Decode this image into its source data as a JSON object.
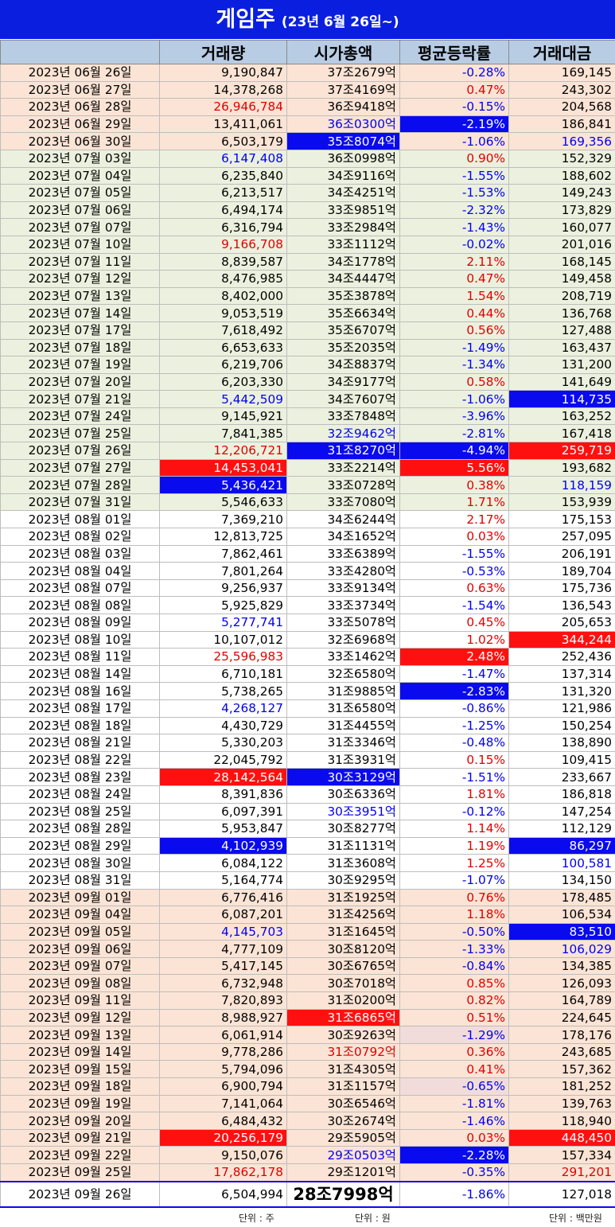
{
  "title": "게임주",
  "subtitle": "(23년 6월 26일~)",
  "headers": [
    "",
    "거래량",
    "시가총액",
    "평균등락률",
    "거래대금"
  ],
  "units": {
    "volume": "단위 : 주",
    "cap": "단위 : 원",
    "amount": "단위 : 백만원"
  },
  "colors": {
    "header_bg": "#b8cce4",
    "title_bg": "#0a1ee0",
    "highlight_red": "#ff1010",
    "highlight_blue": "#0a0aee",
    "row_peach": "#fbe4d5",
    "row_green": "#ebf1de"
  },
  "rows": [
    {
      "date": "2023년 06월 26일",
      "band": "peach",
      "volume": "9,190,847",
      "cap": "37조2679억",
      "change": "-0.28%",
      "amount": "169,145",
      "vs": "black",
      "cs": "black",
      "chs": "blue",
      "as": "black"
    },
    {
      "date": "2023년 06월 27일",
      "band": "peach",
      "volume": "14,378,268",
      "cap": "37조4169억",
      "change": "0.47%",
      "amount": "243,302",
      "vs": "black",
      "cs": "black",
      "chs": "red",
      "as": "black"
    },
    {
      "date": "2023년 06월 28일",
      "band": "peach",
      "volume": "26,946,784",
      "cap": "36조9418억",
      "change": "-0.15%",
      "amount": "204,568",
      "vs": "red",
      "cs": "black",
      "chs": "blue",
      "as": "black"
    },
    {
      "date": "2023년 06월 29일",
      "band": "peach",
      "volume": "13,411,061",
      "cap": "36조0300억",
      "change": "-2.19%",
      "amount": "186,841",
      "vs": "black",
      "cs": "blue",
      "chs": "bg-blue",
      "as": "black"
    },
    {
      "date": "2023년 06월 30일",
      "band": "peach",
      "volume": "6,503,179",
      "cap": "35조8074억",
      "change": "-1.06%",
      "amount": "169,356",
      "vs": "black",
      "cs": "bg-blue",
      "chs": "blue",
      "as": "blue"
    },
    {
      "date": "2023년 07월 03일",
      "band": "green",
      "volume": "6,147,408",
      "cap": "36조0998억",
      "change": "0.90%",
      "amount": "152,329",
      "vs": "blue",
      "cs": "black",
      "chs": "red",
      "as": "black"
    },
    {
      "date": "2023년 07월 04일",
      "band": "green",
      "volume": "6,235,840",
      "cap": "34조9116억",
      "change": "-1.55%",
      "amount": "188,602",
      "vs": "black",
      "cs": "black",
      "chs": "blue",
      "as": "black"
    },
    {
      "date": "2023년 07월 05일",
      "band": "green",
      "volume": "6,213,517",
      "cap": "34조4251억",
      "change": "-1.53%",
      "amount": "149,243",
      "vs": "black",
      "cs": "black",
      "chs": "blue",
      "as": "black"
    },
    {
      "date": "2023년 07월 06일",
      "band": "green",
      "volume": "6,494,174",
      "cap": "33조9851억",
      "change": "-2.32%",
      "amount": "173,829",
      "vs": "black",
      "cs": "black",
      "chs": "blue",
      "as": "black"
    },
    {
      "date": "2023년 07월 07일",
      "band": "green",
      "volume": "6,316,794",
      "cap": "33조2984억",
      "change": "-1.43%",
      "amount": "160,077",
      "vs": "black",
      "cs": "black",
      "chs": "blue",
      "as": "black"
    },
    {
      "date": "2023년 07월 10일",
      "band": "green",
      "volume": "9,166,708",
      "cap": "33조1112억",
      "change": "-0.02%",
      "amount": "201,016",
      "vs": "red",
      "cs": "black",
      "chs": "blue",
      "as": "black"
    },
    {
      "date": "2023년 07월 11일",
      "band": "green",
      "volume": "8,839,587",
      "cap": "34조1778억",
      "change": "2.11%",
      "amount": "168,145",
      "vs": "black",
      "cs": "black",
      "chs": "red",
      "as": "black"
    },
    {
      "date": "2023년 07월 12일",
      "band": "green",
      "volume": "8,476,985",
      "cap": "34조4447억",
      "change": "0.47%",
      "amount": "149,458",
      "vs": "black",
      "cs": "black",
      "chs": "red",
      "as": "black"
    },
    {
      "date": "2023년 07월 13일",
      "band": "green",
      "volume": "8,402,000",
      "cap": "35조3878억",
      "change": "1.54%",
      "amount": "208,719",
      "vs": "black",
      "cs": "black",
      "chs": "red",
      "as": "black"
    },
    {
      "date": "2023년 07월 14일",
      "band": "green",
      "volume": "9,053,519",
      "cap": "35조6634억",
      "change": "0.44%",
      "amount": "136,768",
      "vs": "black",
      "cs": "black",
      "chs": "red",
      "as": "black"
    },
    {
      "date": "2023년 07월 17일",
      "band": "green",
      "volume": "7,618,492",
      "cap": "35조6707억",
      "change": "0.56%",
      "amount": "127,488",
      "vs": "black",
      "cs": "black",
      "chs": "red",
      "as": "black"
    },
    {
      "date": "2023년 07월 18일",
      "band": "green",
      "volume": "6,653,633",
      "cap": "35조2035억",
      "change": "-1.49%",
      "amount": "163,437",
      "vs": "black",
      "cs": "black",
      "chs": "blue",
      "as": "black"
    },
    {
      "date": "2023년 07월 19일",
      "band": "green",
      "volume": "6,219,706",
      "cap": "34조8837억",
      "change": "-1.34%",
      "amount": "131,200",
      "vs": "black",
      "cs": "black",
      "chs": "blue",
      "as": "black"
    },
    {
      "date": "2023년 07월 20일",
      "band": "green",
      "volume": "6,203,330",
      "cap": "34조9177억",
      "change": "0.58%",
      "amount": "141,649",
      "vs": "black",
      "cs": "black",
      "chs": "red",
      "as": "black"
    },
    {
      "date": "2023년 07월 21일",
      "band": "green",
      "volume": "5,442,509",
      "cap": "34조7607억",
      "change": "-1.06%",
      "amount": "114,735",
      "vs": "blue",
      "cs": "black",
      "chs": "blue",
      "as": "bg-blue"
    },
    {
      "date": "2023년 07월 24일",
      "band": "green",
      "volume": "9,145,921",
      "cap": "33조7848억",
      "change": "-3.96%",
      "amount": "163,252",
      "vs": "black",
      "cs": "black",
      "chs": "blue",
      "as": "black"
    },
    {
      "date": "2023년 07월 25일",
      "band": "green",
      "volume": "7,841,385",
      "cap": "32조9462억",
      "change": "-2.81%",
      "amount": "167,418",
      "vs": "black",
      "cs": "blue",
      "chs": "blue",
      "as": "black"
    },
    {
      "date": "2023년 07월 26일",
      "band": "green",
      "volume": "12,206,721",
      "cap": "31조8270억",
      "change": "-4.94%",
      "amount": "259,719",
      "vs": "red",
      "cs": "bg-blue",
      "chs": "bg-blue",
      "as": "bg-red"
    },
    {
      "date": "2023년 07월 27일",
      "band": "green",
      "volume": "14,453,041",
      "cap": "33조2214억",
      "change": "5.56%",
      "amount": "193,682",
      "vs": "bg-red",
      "cs": "black",
      "chs": "bg-red",
      "as": "black"
    },
    {
      "date": "2023년 07월 28일",
      "band": "green",
      "volume": "5,436,421",
      "cap": "33조0728억",
      "change": "0.38%",
      "amount": "118,159",
      "vs": "bg-blue",
      "cs": "black",
      "chs": "red",
      "as": "blue"
    },
    {
      "date": "2023년 07월 31일",
      "band": "green",
      "volume": "5,546,633",
      "cap": "33조7080억",
      "change": "1.71%",
      "amount": "153,939",
      "vs": "black",
      "cs": "black",
      "chs": "red",
      "as": "black"
    },
    {
      "date": "2023년 08월 01일",
      "band": "white",
      "volume": "7,369,210",
      "cap": "34조6244억",
      "change": "2.17%",
      "amount": "175,153",
      "vs": "black",
      "cs": "black",
      "chs": "red",
      "as": "black"
    },
    {
      "date": "2023년 08월 02일",
      "band": "white",
      "volume": "12,813,725",
      "cap": "34조1652억",
      "change": "0.03%",
      "amount": "257,095",
      "vs": "black",
      "cs": "black",
      "chs": "red",
      "as": "black"
    },
    {
      "date": "2023년 08월 03일",
      "band": "white",
      "volume": "7,862,461",
      "cap": "33조6389억",
      "change": "-1.55%",
      "amount": "206,191",
      "vs": "black",
      "cs": "black",
      "chs": "blue",
      "as": "black"
    },
    {
      "date": "2023년 08월 04일",
      "band": "white",
      "volume": "7,801,264",
      "cap": "33조4280억",
      "change": "-0.53%",
      "amount": "189,704",
      "vs": "black",
      "cs": "black",
      "chs": "blue",
      "as": "black"
    },
    {
      "date": "2023년 08월 07일",
      "band": "white",
      "volume": "9,256,937",
      "cap": "33조9134억",
      "change": "0.63%",
      "amount": "175,736",
      "vs": "black",
      "cs": "black",
      "chs": "red",
      "as": "black"
    },
    {
      "date": "2023년 08월 08일",
      "band": "white",
      "volume": "5,925,829",
      "cap": "33조3734억",
      "change": "-1.54%",
      "amount": "136,543",
      "vs": "black",
      "cs": "black",
      "chs": "blue",
      "as": "black"
    },
    {
      "date": "2023년 08월 09일",
      "band": "white",
      "volume": "5,277,741",
      "cap": "33조5078억",
      "change": "0.45%",
      "amount": "205,653",
      "vs": "blue",
      "cs": "black",
      "chs": "red",
      "as": "black"
    },
    {
      "date": "2023년 08월 10일",
      "band": "white",
      "volume": "10,107,012",
      "cap": "32조6968억",
      "change": "1.02%",
      "amount": "344,244",
      "vs": "black",
      "cs": "black",
      "chs": "red",
      "as": "bg-red"
    },
    {
      "date": "2023년 08월 11일",
      "band": "white",
      "volume": "25,596,983",
      "cap": "33조1462억",
      "change": "2.48%",
      "amount": "252,436",
      "vs": "red",
      "cs": "black",
      "chs": "bg-red",
      "as": "black"
    },
    {
      "date": "2023년 08월 14일",
      "band": "white",
      "volume": "6,710,181",
      "cap": "32조6580억",
      "change": "-1.47%",
      "amount": "137,314",
      "vs": "black",
      "cs": "black",
      "chs": "blue",
      "as": "black"
    },
    {
      "date": "2023년 08월 16일",
      "band": "white",
      "volume": "5,738,265",
      "cap": "31조9885억",
      "change": "-2.83%",
      "amount": "131,320",
      "vs": "black",
      "cs": "black",
      "chs": "bg-blue",
      "as": "black"
    },
    {
      "date": "2023년 08월 17일",
      "band": "white",
      "volume": "4,268,127",
      "cap": "31조6580억",
      "change": "-0.86%",
      "amount": "121,986",
      "vs": "blue",
      "cs": "black",
      "chs": "blue",
      "as": "black"
    },
    {
      "date": "2023년 08월 18일",
      "band": "white",
      "volume": "4,430,729",
      "cap": "31조4455억",
      "change": "-1.25%",
      "amount": "150,254",
      "vs": "black",
      "cs": "black",
      "chs": "blue",
      "as": "black"
    },
    {
      "date": "2023년 08월 21일",
      "band": "white",
      "volume": "5,330,203",
      "cap": "31조3346억",
      "change": "-0.48%",
      "amount": "138,890",
      "vs": "black",
      "cs": "black",
      "chs": "blue",
      "as": "black"
    },
    {
      "date": "2023년 08월 22일",
      "band": "white",
      "volume": "22,045,792",
      "cap": "31조3931억",
      "change": "0.15%",
      "amount": "109,415",
      "vs": "black",
      "cs": "black",
      "chs": "red",
      "as": "black"
    },
    {
      "date": "2023년 08월 23일",
      "band": "white",
      "volume": "28,142,564",
      "cap": "30조3129억",
      "change": "-1.51%",
      "amount": "233,667",
      "vs": "bg-red",
      "cs": "bg-blue",
      "chs": "blue",
      "as": "black"
    },
    {
      "date": "2023년 08월 24일",
      "band": "white",
      "volume": "8,391,836",
      "cap": "30조6336억",
      "change": "1.81%",
      "amount": "186,818",
      "vs": "black",
      "cs": "black",
      "chs": "red",
      "as": "black"
    },
    {
      "date": "2023년 08월 25일",
      "band": "white",
      "volume": "6,097,391",
      "cap": "30조3951억",
      "change": "-0.12%",
      "amount": "147,254",
      "vs": "black",
      "cs": "blue",
      "chs": "blue",
      "as": "black"
    },
    {
      "date": "2023년 08월 28일",
      "band": "white",
      "volume": "5,953,847",
      "cap": "30조8277억",
      "change": "1.14%",
      "amount": "112,129",
      "vs": "black",
      "cs": "black",
      "chs": "red",
      "as": "black"
    },
    {
      "date": "2023년 08월 29일",
      "band": "white",
      "volume": "4,102,939",
      "cap": "31조1131억",
      "change": "1.19%",
      "amount": "86,297",
      "vs": "bg-blue",
      "cs": "black",
      "chs": "red",
      "as": "bg-blue"
    },
    {
      "date": "2023년 08월 30일",
      "band": "white",
      "volume": "6,084,122",
      "cap": "31조3608억",
      "change": "1.25%",
      "amount": "100,581",
      "vs": "black",
      "cs": "black",
      "chs": "red",
      "as": "blue"
    },
    {
      "date": "2023년 08월 31일",
      "band": "white",
      "volume": "5,164,774",
      "cap": "30조9295억",
      "change": "-1.07%",
      "amount": "134,150",
      "vs": "black",
      "cs": "black",
      "chs": "blue",
      "as": "black"
    },
    {
      "date": "2023년 09월 01일",
      "band": "peach",
      "volume": "6,776,416",
      "cap": "31조1925억",
      "change": "0.76%",
      "amount": "178,485",
      "vs": "black",
      "cs": "black",
      "chs": "red",
      "as": "black"
    },
    {
      "date": "2023년 09월 04일",
      "band": "peach",
      "volume": "6,087,201",
      "cap": "31조4256억",
      "change": "1.18%",
      "amount": "106,534",
      "vs": "black",
      "cs": "black",
      "chs": "red",
      "as": "black"
    },
    {
      "date": "2023년 09월 05일",
      "band": "peach",
      "volume": "4,145,703",
      "cap": "31조1645억",
      "change": "-0.50%",
      "amount": "83,510",
      "vs": "blue",
      "cs": "black",
      "chs": "blue",
      "as": "bg-blue"
    },
    {
      "date": "2023년 09월 06일",
      "band": "peach",
      "volume": "4,777,109",
      "cap": "30조8120억",
      "change": "-1.33%",
      "amount": "106,029",
      "vs": "black",
      "cs": "black",
      "chs": "blue",
      "as": "blue"
    },
    {
      "date": "2023년 09월 07일",
      "band": "peach",
      "volume": "5,417,145",
      "cap": "30조6765억",
      "change": "-0.84%",
      "amount": "134,385",
      "vs": "black",
      "cs": "black",
      "chs": "blue",
      "as": "black"
    },
    {
      "date": "2023년 09월 08일",
      "band": "peach",
      "volume": "6,732,948",
      "cap": "30조7018억",
      "change": "0.85%",
      "amount": "126,093",
      "vs": "black",
      "cs": "black",
      "chs": "red",
      "as": "black"
    },
    {
      "date": "2023년 09월 11일",
      "band": "peach",
      "volume": "7,820,893",
      "cap": "31조0200억",
      "change": "0.82%",
      "amount": "164,789",
      "vs": "black",
      "cs": "black",
      "chs": "red",
      "as": "black"
    },
    {
      "date": "2023년 09월 12일",
      "band": "peach",
      "volume": "8,988,927",
      "cap": "31조6865억",
      "change": "0.51%",
      "amount": "224,645",
      "vs": "black",
      "cs": "bg-red",
      "chs": "red",
      "as": "black"
    },
    {
      "date": "2023년 09월 13일",
      "band": "peach",
      "volume": "6,061,914",
      "cap": "30조9263억",
      "change": "-1.29%",
      "amount": "178,176",
      "vs": "black",
      "cs": "black",
      "chs": "bg-pink-blue",
      "as": "black"
    },
    {
      "date": "2023년 09월 14일",
      "band": "peach",
      "volume": "9,778,286",
      "cap": "31조0792억",
      "change": "0.36%",
      "amount": "243,685",
      "vs": "black",
      "cs": "red",
      "chs": "red",
      "as": "black"
    },
    {
      "date": "2023년 09월 15일",
      "band": "peach",
      "volume": "5,794,096",
      "cap": "31조4305억",
      "change": "0.41%",
      "amount": "157,362",
      "vs": "black",
      "cs": "black",
      "chs": "red",
      "as": "black"
    },
    {
      "date": "2023년 09월 18일",
      "band": "peach",
      "volume": "6,900,794",
      "cap": "31조1157억",
      "change": "-0.65%",
      "amount": "181,252",
      "vs": "black",
      "cs": "black",
      "chs": "bg-pink-blue",
      "as": "black"
    },
    {
      "date": "2023년 09월 19일",
      "band": "peach",
      "volume": "7,141,064",
      "cap": "30조6546억",
      "change": "-1.81%",
      "amount": "139,763",
      "vs": "black",
      "cs": "black",
      "chs": "blue",
      "as": "black"
    },
    {
      "date": "2023년 09월 20일",
      "band": "peach",
      "volume": "6,484,432",
      "cap": "30조2674억",
      "change": "-1.46%",
      "amount": "118,940",
      "vs": "black",
      "cs": "black",
      "chs": "blue",
      "as": "black"
    },
    {
      "date": "2023년 09월 21일",
      "band": "peach",
      "volume": "20,256,179",
      "cap": "29조5905억",
      "change": "0.03%",
      "amount": "448,450",
      "vs": "bg-red",
      "cs": "black",
      "chs": "red",
      "as": "bg-red"
    },
    {
      "date": "2023년 09월 22일",
      "band": "peach",
      "volume": "9,150,076",
      "cap": "29조0503억",
      "change": "-2.28%",
      "amount": "157,334",
      "vs": "black",
      "cs": "blue",
      "chs": "bg-blue",
      "as": "black"
    },
    {
      "date": "2023년 09월 25일",
      "band": "peach",
      "volume": "17,862,178",
      "cap": "29조1201억",
      "change": "-0.35%",
      "amount": "291,201",
      "vs": "red",
      "cs": "black",
      "chs": "blue",
      "as": "red"
    }
  ],
  "last_row": {
    "date": "2023년 09월 26일",
    "volume": "6,504,994",
    "cap": "28조7998억",
    "change": "-1.86%",
    "amount": "127,018"
  }
}
